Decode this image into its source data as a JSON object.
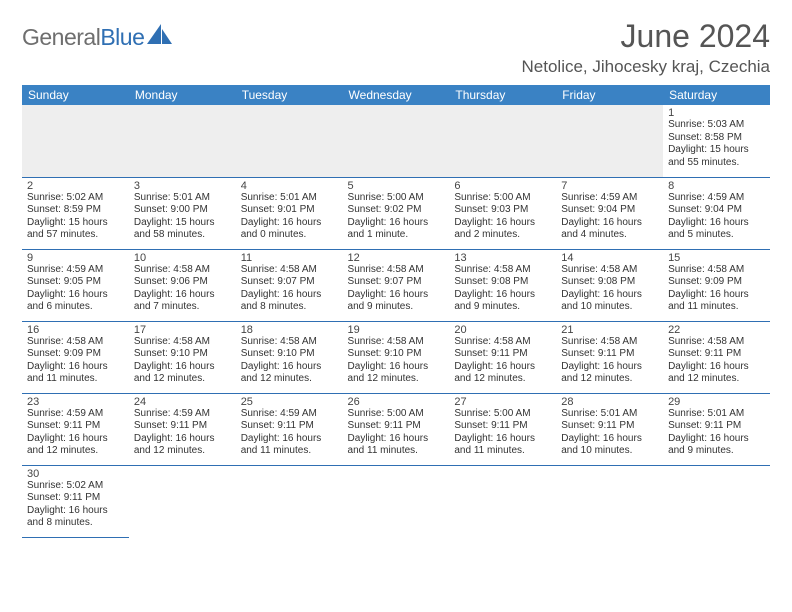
{
  "brand": {
    "part1": "General",
    "part2": "Blue"
  },
  "title": "June 2024",
  "location": "Netolice, Jihocesky kraj, Czechia",
  "colors": {
    "header_bg": "#3a82c4",
    "border": "#2f6fb3",
    "empty_bg": "#eeeeee",
    "logo_gray": "#6e6e6e",
    "logo_blue": "#2f6fb3",
    "title_color": "#555"
  },
  "day_headers": [
    "Sunday",
    "Monday",
    "Tuesday",
    "Wednesday",
    "Thursday",
    "Friday",
    "Saturday"
  ],
  "weeks": [
    [
      null,
      null,
      null,
      null,
      null,
      null,
      {
        "n": "1",
        "sr": "5:03 AM",
        "ss": "8:58 PM",
        "dl": "15 hours and 55 minutes."
      }
    ],
    [
      {
        "n": "2",
        "sr": "5:02 AM",
        "ss": "8:59 PM",
        "dl": "15 hours and 57 minutes."
      },
      {
        "n": "3",
        "sr": "5:01 AM",
        "ss": "9:00 PM",
        "dl": "15 hours and 58 minutes."
      },
      {
        "n": "4",
        "sr": "5:01 AM",
        "ss": "9:01 PM",
        "dl": "16 hours and 0 minutes."
      },
      {
        "n": "5",
        "sr": "5:00 AM",
        "ss": "9:02 PM",
        "dl": "16 hours and 1 minute."
      },
      {
        "n": "6",
        "sr": "5:00 AM",
        "ss": "9:03 PM",
        "dl": "16 hours and 2 minutes."
      },
      {
        "n": "7",
        "sr": "4:59 AM",
        "ss": "9:04 PM",
        "dl": "16 hours and 4 minutes."
      },
      {
        "n": "8",
        "sr": "4:59 AM",
        "ss": "9:04 PM",
        "dl": "16 hours and 5 minutes."
      }
    ],
    [
      {
        "n": "9",
        "sr": "4:59 AM",
        "ss": "9:05 PM",
        "dl": "16 hours and 6 minutes."
      },
      {
        "n": "10",
        "sr": "4:58 AM",
        "ss": "9:06 PM",
        "dl": "16 hours and 7 minutes."
      },
      {
        "n": "11",
        "sr": "4:58 AM",
        "ss": "9:07 PM",
        "dl": "16 hours and 8 minutes."
      },
      {
        "n": "12",
        "sr": "4:58 AM",
        "ss": "9:07 PM",
        "dl": "16 hours and 9 minutes."
      },
      {
        "n": "13",
        "sr": "4:58 AM",
        "ss": "9:08 PM",
        "dl": "16 hours and 9 minutes."
      },
      {
        "n": "14",
        "sr": "4:58 AM",
        "ss": "9:08 PM",
        "dl": "16 hours and 10 minutes."
      },
      {
        "n": "15",
        "sr": "4:58 AM",
        "ss": "9:09 PM",
        "dl": "16 hours and 11 minutes."
      }
    ],
    [
      {
        "n": "16",
        "sr": "4:58 AM",
        "ss": "9:09 PM",
        "dl": "16 hours and 11 minutes."
      },
      {
        "n": "17",
        "sr": "4:58 AM",
        "ss": "9:10 PM",
        "dl": "16 hours and 12 minutes."
      },
      {
        "n": "18",
        "sr": "4:58 AM",
        "ss": "9:10 PM",
        "dl": "16 hours and 12 minutes."
      },
      {
        "n": "19",
        "sr": "4:58 AM",
        "ss": "9:10 PM",
        "dl": "16 hours and 12 minutes."
      },
      {
        "n": "20",
        "sr": "4:58 AM",
        "ss": "9:11 PM",
        "dl": "16 hours and 12 minutes."
      },
      {
        "n": "21",
        "sr": "4:58 AM",
        "ss": "9:11 PM",
        "dl": "16 hours and 12 minutes."
      },
      {
        "n": "22",
        "sr": "4:58 AM",
        "ss": "9:11 PM",
        "dl": "16 hours and 12 minutes."
      }
    ],
    [
      {
        "n": "23",
        "sr": "4:59 AM",
        "ss": "9:11 PM",
        "dl": "16 hours and 12 minutes."
      },
      {
        "n": "24",
        "sr": "4:59 AM",
        "ss": "9:11 PM",
        "dl": "16 hours and 12 minutes."
      },
      {
        "n": "25",
        "sr": "4:59 AM",
        "ss": "9:11 PM",
        "dl": "16 hours and 11 minutes."
      },
      {
        "n": "26",
        "sr": "5:00 AM",
        "ss": "9:11 PM",
        "dl": "16 hours and 11 minutes."
      },
      {
        "n": "27",
        "sr": "5:00 AM",
        "ss": "9:11 PM",
        "dl": "16 hours and 11 minutes."
      },
      {
        "n": "28",
        "sr": "5:01 AM",
        "ss": "9:11 PM",
        "dl": "16 hours and 10 minutes."
      },
      {
        "n": "29",
        "sr": "5:01 AM",
        "ss": "9:11 PM",
        "dl": "16 hours and 9 minutes."
      }
    ],
    [
      {
        "n": "30",
        "sr": "5:02 AM",
        "ss": "9:11 PM",
        "dl": "16 hours and 8 minutes."
      },
      null,
      null,
      null,
      null,
      null,
      null
    ]
  ],
  "labels": {
    "sunrise": "Sunrise: ",
    "sunset": "Sunset: ",
    "daylight": "Daylight: "
  }
}
